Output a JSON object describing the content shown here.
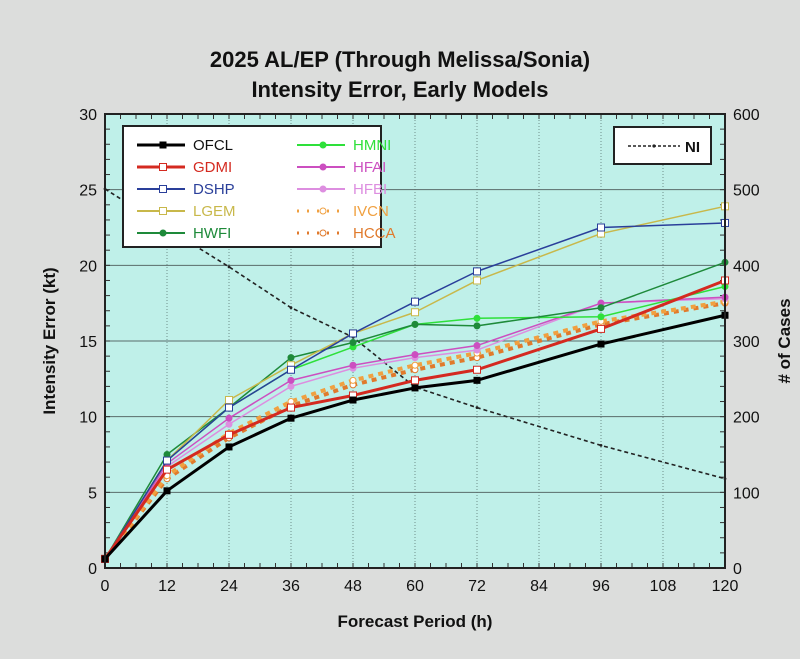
{
  "chart_data": {
    "type": "line",
    "title": "2025 AL/EP (Through Melissa/Sonia)",
    "subtitle": "Intensity Error, Early Models",
    "xlabel": "Forecast Period (h)",
    "ylabel": "Intensity Error (kt)",
    "y2label": "# of Cases",
    "x": [
      0,
      12,
      24,
      36,
      48,
      60,
      72,
      96,
      120
    ],
    "xticks": [
      "0",
      "12",
      "24",
      "36",
      "48",
      "60",
      "72",
      "84",
      "96",
      "108",
      "120"
    ],
    "xlim": [
      0,
      120
    ],
    "ylim": [
      0,
      30
    ],
    "yticks": [
      "0",
      "5",
      "10",
      "15",
      "20",
      "25",
      "30"
    ],
    "y2lim": [
      0,
      600
    ],
    "y2ticks": [
      "0",
      "100",
      "200",
      "300",
      "400",
      "500",
      "600"
    ],
    "grid": true,
    "legend_position": "top-left",
    "legend2_position": "top-right",
    "series": [
      {
        "name": "OFCL",
        "color": "#000000",
        "marker": "filled-square",
        "style": "solid",
        "width": 3,
        "values": [
          0.6,
          5.1,
          8.0,
          9.9,
          11.1,
          11.9,
          12.4,
          14.8,
          16.7
        ]
      },
      {
        "name": "GDMI",
        "color": "#d42a20",
        "marker": "open-square",
        "style": "solid",
        "width": 3,
        "values": [
          0.6,
          6.5,
          8.8,
          10.6,
          11.4,
          12.4,
          13.1,
          15.8,
          19.0
        ]
      },
      {
        "name": "DSHP",
        "color": "#2a3f9a",
        "marker": "open-square",
        "style": "solid",
        "width": 1.5,
        "values": [
          0.6,
          7.1,
          10.6,
          13.1,
          15.5,
          17.6,
          19.6,
          22.5,
          22.8
        ]
      },
      {
        "name": "LGEM",
        "color": "#c8b84a",
        "marker": "open-square",
        "style": "solid",
        "width": 1.5,
        "values": [
          0.6,
          7.1,
          11.1,
          13.4,
          15.5,
          16.9,
          19.0,
          22.1,
          23.9
        ]
      },
      {
        "name": "HWFI",
        "color": "#1e8a3a",
        "marker": "filled-circle",
        "style": "solid",
        "width": 1.5,
        "values": [
          0.6,
          7.5,
          10.6,
          13.9,
          14.9,
          16.1,
          16.0,
          17.2,
          20.2
        ]
      },
      {
        "name": "HMNI",
        "color": "#2ee03a",
        "marker": "filled-circle",
        "style": "solid",
        "width": 1.5,
        "values": [
          0.6,
          7.1,
          10.6,
          13.1,
          14.6,
          16.1,
          16.5,
          16.6,
          18.6
        ]
      },
      {
        "name": "HFAI",
        "color": "#cc4fc0",
        "marker": "filled-circle",
        "style": "solid",
        "width": 1.5,
        "values": [
          0.6,
          6.9,
          9.9,
          12.4,
          13.4,
          14.1,
          14.7,
          17.5,
          17.9
        ]
      },
      {
        "name": "HFBI",
        "color": "#dd8ee0",
        "marker": "filled-circle",
        "style": "solid",
        "width": 1.5,
        "values": [
          0.6,
          6.7,
          9.5,
          12.0,
          13.2,
          13.9,
          14.4,
          17.5,
          17.8
        ]
      },
      {
        "name": "IVCN",
        "color": "#f0a040",
        "marker": "open-circle",
        "style": "dotted",
        "width": 3,
        "values": [
          0.6,
          6.1,
          8.9,
          11.0,
          12.4,
          13.4,
          14.2,
          16.3,
          17.6
        ]
      },
      {
        "name": "HCCA",
        "color": "#e07a2c",
        "marker": "open-circle",
        "style": "dotted",
        "width": 3,
        "values": [
          0.6,
          5.9,
          8.6,
          10.7,
          12.1,
          13.1,
          13.9,
          16.1,
          17.5
        ]
      }
    ],
    "cases": {
      "name": "NI",
      "color": "#222222",
      "style": "dashed",
      "axis": "right",
      "values": [
        501,
        449,
        398,
        344,
        305,
        239,
        212,
        162,
        118
      ]
    }
  },
  "colors": {
    "background": "#dcdddc",
    "plot_background": "#bff0e9",
    "grid": "#5a6b6a"
  }
}
